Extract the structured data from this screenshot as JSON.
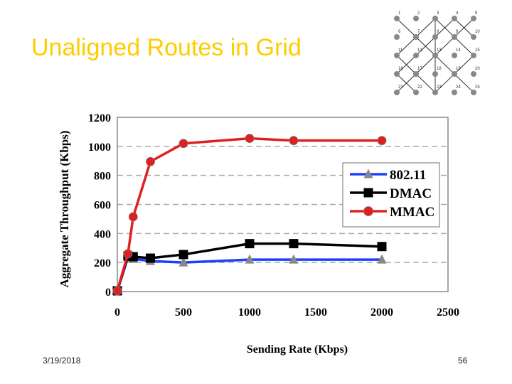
{
  "slide": {
    "title": "Unaligned Routes in Grid",
    "date": "3/19/2018",
    "page_number": "56"
  },
  "grid_diagram": {
    "node_labels": [
      "1",
      "2",
      "3",
      "4",
      "5",
      "6",
      "7",
      "8",
      "9",
      "10",
      "11",
      "12",
      "13",
      "14",
      "15",
      "16",
      "17",
      "18",
      "19",
      "20",
      "21",
      "22",
      "23",
      "24",
      "25"
    ]
  },
  "chart_data": {
    "type": "line",
    "title": "",
    "xlabel": "Sending Rate (Kbps)",
    "ylabel": "Aggregate Throughput (Kbps)",
    "xlim": [
      0,
      2500
    ],
    "ylim": [
      0,
      1200
    ],
    "xticks": [
      0,
      500,
      1000,
      1500,
      2000,
      2500
    ],
    "yticks": [
      0,
      200,
      400,
      600,
      800,
      1000,
      1200
    ],
    "grid": "horizontal dashed",
    "legend_position": "right",
    "series": [
      {
        "name": "802.11",
        "color": "#1f3fff",
        "marker": "triangle",
        "x": [
          0,
          80,
          120,
          250,
          500,
          1000,
          1333,
          2000
        ],
        "y": [
          5,
          235,
          225,
          210,
          200,
          220,
          220,
          220
        ]
      },
      {
        "name": "DMAC",
        "color": "#000000",
        "marker": "square",
        "x": [
          0,
          80,
          120,
          250,
          500,
          1000,
          1333,
          2000
        ],
        "y": [
          5,
          245,
          240,
          230,
          255,
          330,
          330,
          310
        ]
      },
      {
        "name": "MMAC",
        "color": "#e02020",
        "marker": "circle",
        "x": [
          0,
          80,
          120,
          250,
          500,
          1000,
          1333,
          2000
        ],
        "y": [
          5,
          260,
          515,
          895,
          1020,
          1055,
          1040,
          1040
        ]
      }
    ]
  }
}
